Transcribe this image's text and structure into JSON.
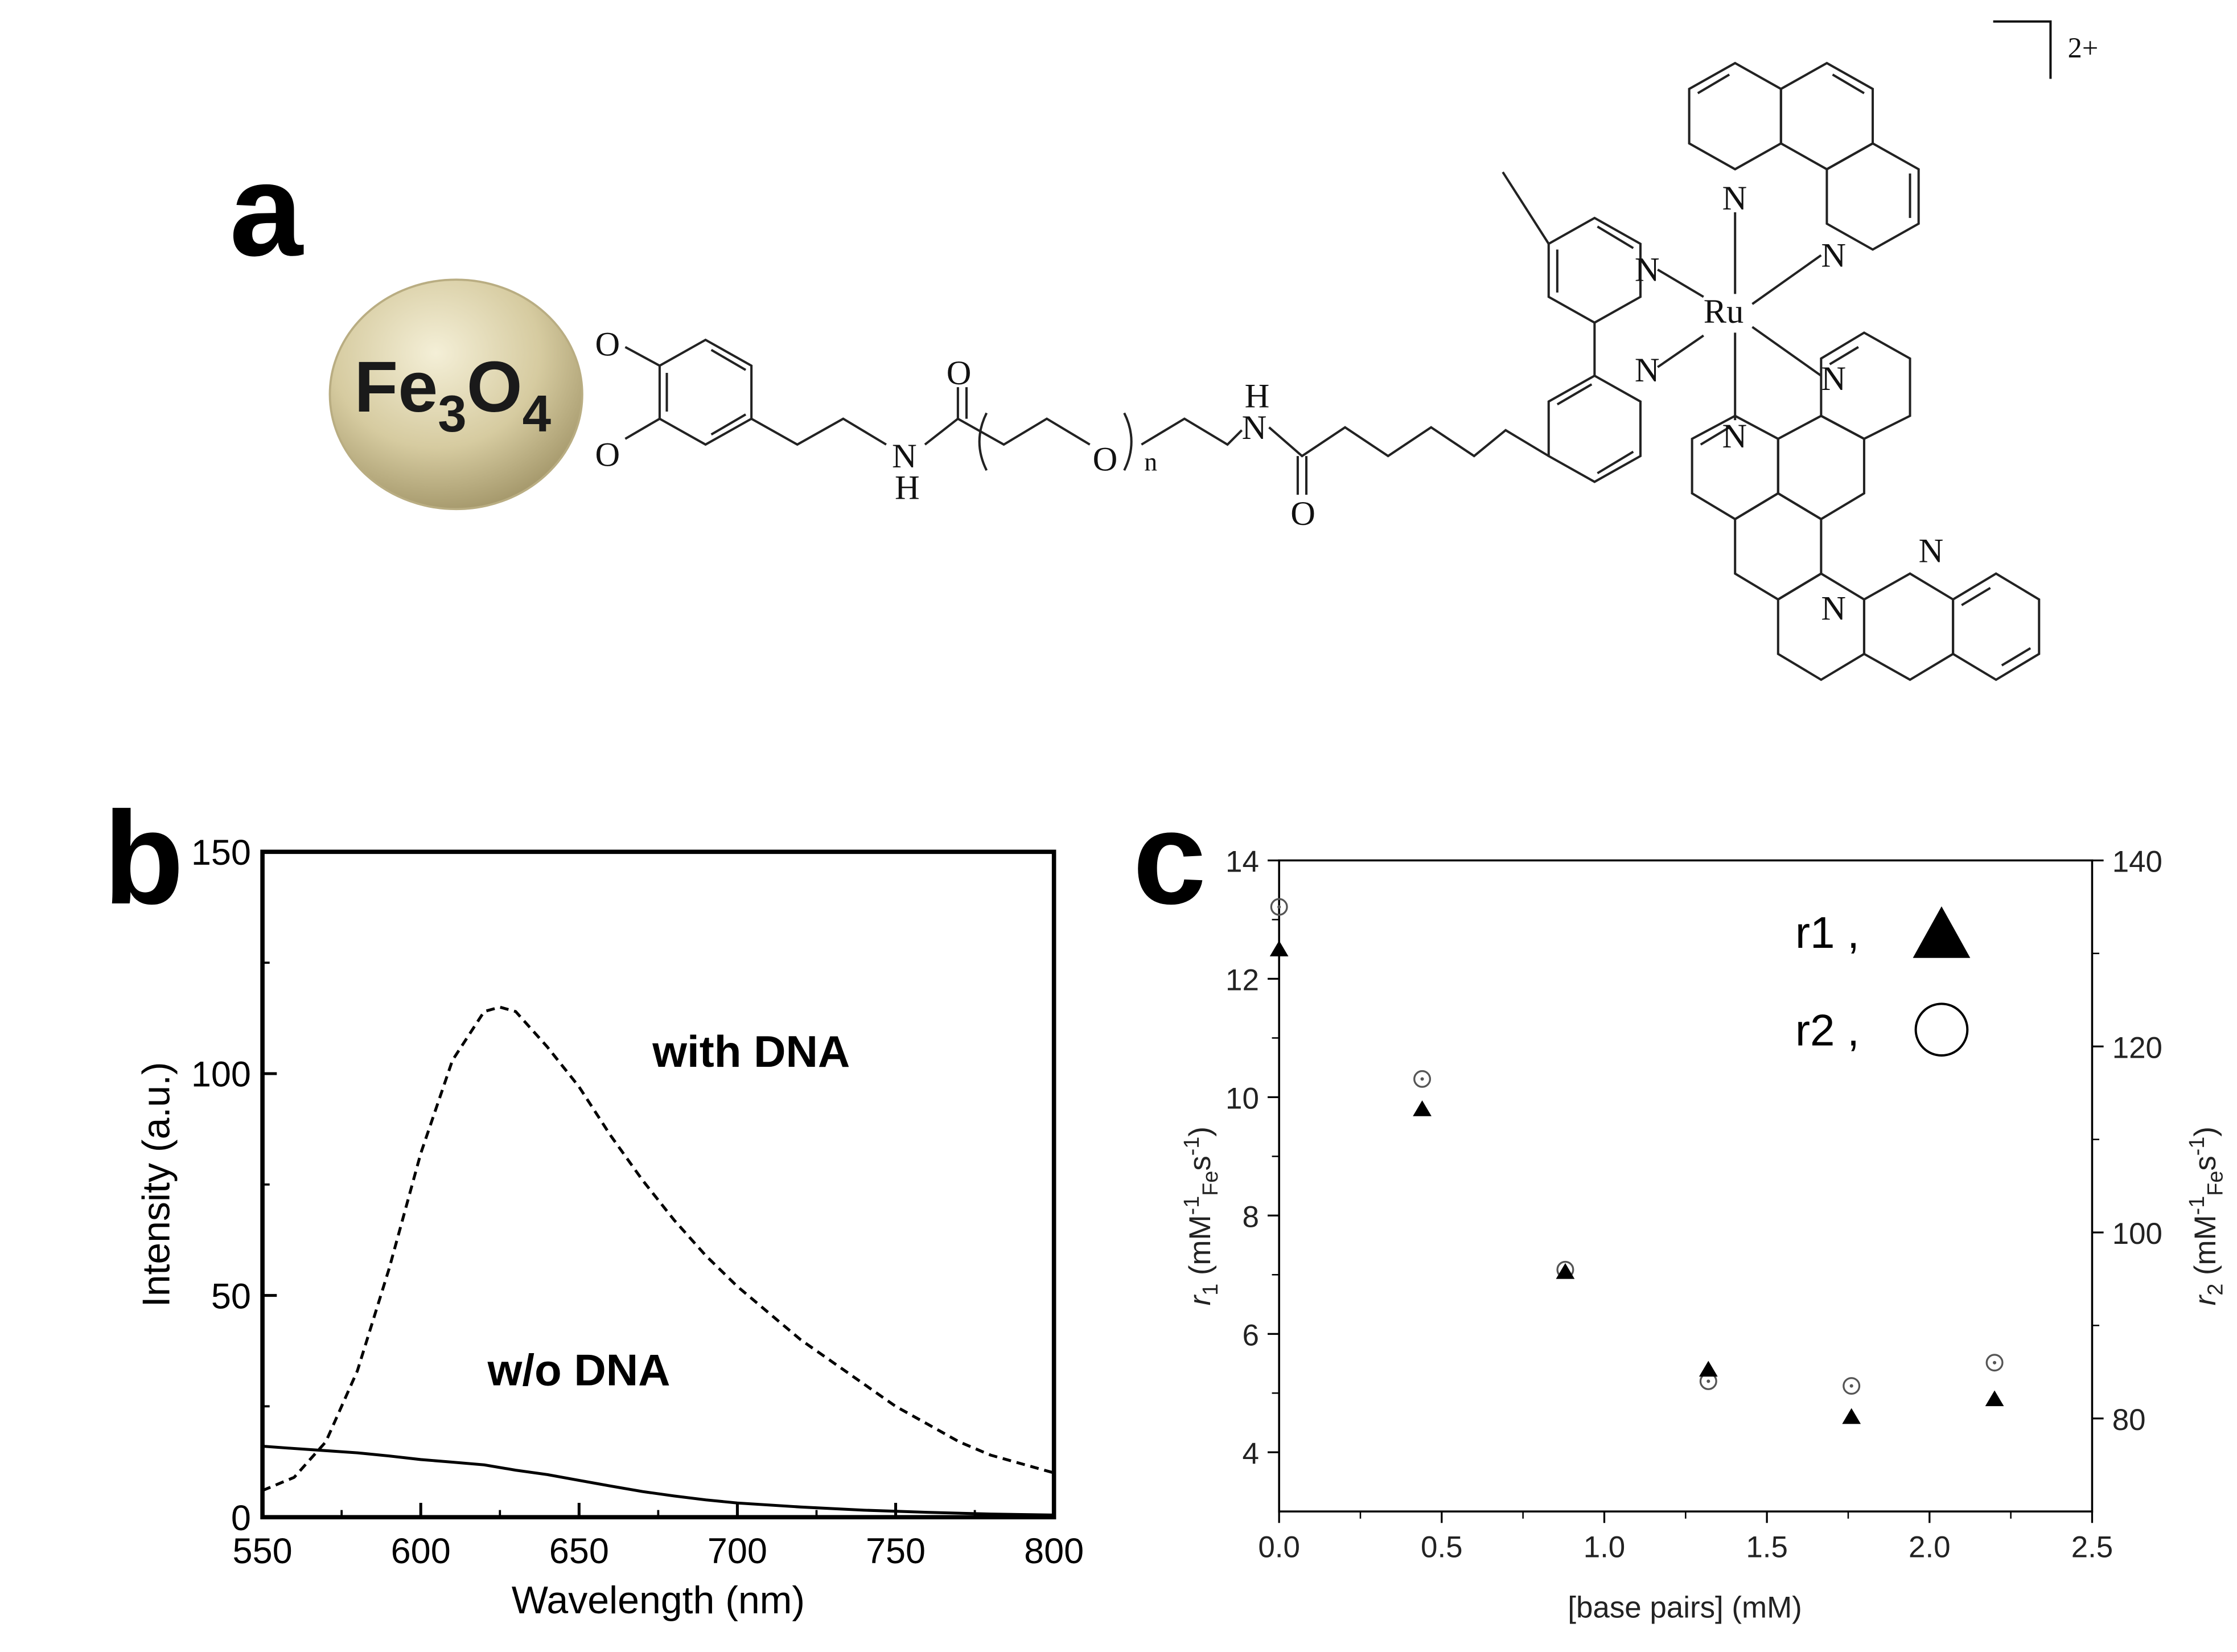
{
  "panel_a": {
    "panel_label": "a",
    "nanoparticle": {
      "main": "Fe",
      "sub1": "3",
      "mid": "O",
      "sub2": "4"
    },
    "atoms": {
      "O_top": "O",
      "O_bottom": "O",
      "NH_left_N": "N",
      "NH_left_H": "H",
      "carbonyl_left": "O",
      "peg_O": "O",
      "repeat_n": "n",
      "NH_right_H": "H",
      "NH_right_N": "N",
      "carbonyl_right": "O",
      "bpy_N1": "N",
      "bpy_N2": "N",
      "metal": "Ru",
      "phen_N1": "N",
      "phen_N2": "N",
      "dppz_N1": "N",
      "dppz_N2": "N",
      "dppz_N3": "N",
      "dppz_N4": "N"
    },
    "charge": "2+"
  },
  "chart_data": [
    {
      "panel": "b",
      "type": "line",
      "xlabel": "Wavelength (nm)",
      "ylabel": "Intensity (a.u.)",
      "xlim": [
        550,
        800
      ],
      "ylim": [
        0,
        150
      ],
      "xticks": [
        550,
        600,
        650,
        700,
        750,
        800
      ],
      "yticks": [
        0,
        50,
        100,
        150
      ],
      "grid": false,
      "series": [
        {
          "name": "with DNA",
          "style": "dashed",
          "x": [
            550,
            560,
            570,
            580,
            590,
            600,
            610,
            620,
            625,
            630,
            640,
            650,
            660,
            670,
            680,
            690,
            700,
            710,
            720,
            730,
            740,
            750,
            760,
            770,
            780,
            790,
            800
          ],
          "y": [
            6,
            9,
            17,
            33,
            56,
            82,
            103,
            114,
            115,
            114,
            106,
            97,
            86,
            76,
            67,
            59,
            52,
            46,
            40,
            35,
            30,
            25,
            21,
            17,
            14,
            12,
            10
          ]
        },
        {
          "name": "w/o DNA",
          "style": "solid",
          "x": [
            550,
            560,
            570,
            580,
            590,
            600,
            610,
            620,
            630,
            640,
            650,
            660,
            670,
            680,
            690,
            700,
            720,
            740,
            760,
            780,
            800
          ],
          "y": [
            16,
            15.5,
            15,
            14.5,
            13.8,
            13,
            12.4,
            11.8,
            10.6,
            9.6,
            8.3,
            7,
            5.8,
            4.8,
            3.9,
            3.2,
            2.3,
            1.6,
            1.1,
            0.7,
            0.5
          ]
        }
      ],
      "annotations": [
        "with DNA",
        "w/o DNA"
      ]
    },
    {
      "panel": "c",
      "type": "scatter",
      "xlabel": "[base pairs] (mM)",
      "ylabel_left": {
        "sym": "r",
        "sub": "1",
        "unit_open": " (mM",
        "sup1": "-1",
        "sub_fe": "Fe",
        "s": "s",
        "sup2": "-1",
        "close": ")"
      },
      "ylabel_right": {
        "sym": "r",
        "sub": "2",
        "unit_open": " (mM",
        "sup1": "-1",
        "sub_fe": "Fe",
        "s": "s",
        "sup2": "-1",
        "close": ")"
      },
      "xlim": [
        0,
        2.5
      ],
      "ylim_left": [
        3,
        14
      ],
      "ylim_right": [
        70,
        140
      ],
      "xticks": [
        0.0,
        0.5,
        1.0,
        1.5,
        2.0,
        2.5
      ],
      "yticks_left": [
        4,
        6,
        8,
        10,
        12,
        14
      ],
      "yticks_right": [
        80,
        100,
        120,
        140
      ],
      "grid": false,
      "legend_position": "top-right",
      "series": [
        {
          "name": "r1 ,",
          "marker": "filled-triangle",
          "axis": "left",
          "x": [
            0.0,
            0.44,
            0.88,
            1.32,
            1.76,
            2.2
          ],
          "y": [
            12.5,
            9.8,
            7.05,
            5.4,
            4.6,
            4.9
          ]
        },
        {
          "name": "r2 ,",
          "marker": "open-circle",
          "axis": "right",
          "x": [
            0.0,
            0.44,
            0.88,
            1.32,
            1.76,
            2.2
          ],
          "y": [
            135,
            116.5,
            96,
            84,
            83.5,
            86
          ]
        }
      ]
    }
  ]
}
